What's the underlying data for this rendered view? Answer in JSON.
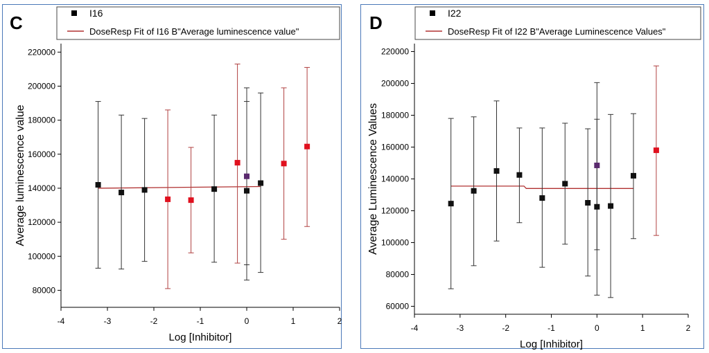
{
  "chart_data": [
    {
      "type": "scatter",
      "panel_letter": "C",
      "xlabel": "Log [Inhibitor]",
      "ylabel": "Average luminescence value",
      "xlim": [
        -4,
        2
      ],
      "ylim": [
        70000,
        225000
      ],
      "xticks": [
        -4,
        -3,
        -2,
        -1,
        0,
        1,
        2
      ],
      "yticks": [
        80000,
        100000,
        120000,
        140000,
        160000,
        180000,
        200000,
        220000
      ],
      "grid": false,
      "legend_position": "top",
      "legend": [
        {
          "label": "I16",
          "kind": "marker",
          "color": "#000000"
        },
        {
          "label": "DoseResp Fit of I16 B\"Average luminescence value\"",
          "kind": "line",
          "color": "#b03030"
        }
      ],
      "colors": {
        "black": "#111111",
        "red": "#e0101e",
        "purple": "#5a2a6e",
        "fit": "#b03030",
        "errbar_red": "#b04040",
        "errbar_black": "#333333"
      },
      "fit_line": {
        "x": [
          -3.2,
          0.3
        ],
        "y": [
          140000,
          141000
        ]
      },
      "points": [
        {
          "x": -3.2,
          "y": 142000,
          "lo": 93000,
          "hi": 191000,
          "color": "black"
        },
        {
          "x": -2.7,
          "y": 137500,
          "lo": 92500,
          "hi": 183000,
          "color": "black"
        },
        {
          "x": -2.2,
          "y": 139000,
          "lo": 97000,
          "hi": 181000,
          "color": "black"
        },
        {
          "x": -1.7,
          "y": 133500,
          "lo": 81000,
          "hi": 186000,
          "color": "red"
        },
        {
          "x": -1.2,
          "y": 133000,
          "lo": 102000,
          "hi": 164000,
          "color": "red"
        },
        {
          "x": -0.7,
          "y": 139500,
          "lo": 96500,
          "hi": 183000,
          "color": "black"
        },
        {
          "x": -0.2,
          "y": 155000,
          "lo": 96000,
          "hi": 213000,
          "color": "red"
        },
        {
          "x": 0.0,
          "y": 147000,
          "lo": 95000,
          "hi": 199000,
          "color": "purple"
        },
        {
          "x": 0.0,
          "y": 138500,
          "lo": 86000,
          "hi": 191000,
          "color": "black"
        },
        {
          "x": 0.3,
          "y": 143000,
          "lo": 90500,
          "hi": 196000,
          "color": "black"
        },
        {
          "x": 0.8,
          "y": 154500,
          "lo": 110000,
          "hi": 199000,
          "color": "red"
        },
        {
          "x": 1.3,
          "y": 164500,
          "lo": 117500,
          "hi": 211000,
          "color": "red"
        }
      ]
    },
    {
      "type": "scatter",
      "panel_letter": "D",
      "xlabel": "Log [Inhibitor]",
      "ylabel": "Average Luminescence Values",
      "xlim": [
        -4,
        2
      ],
      "ylim": [
        55000,
        225000
      ],
      "xticks": [
        -4,
        -3,
        -2,
        -1,
        0,
        1,
        2
      ],
      "yticks": [
        60000,
        80000,
        100000,
        120000,
        140000,
        160000,
        180000,
        200000,
        220000
      ],
      "grid": false,
      "legend_position": "top",
      "legend": [
        {
          "label": "I22",
          "kind": "marker",
          "color": "#000000"
        },
        {
          "label": "DoseResp Fit of I22 B\"Average Luminescence Values\"",
          "kind": "line",
          "color": "#b03030"
        }
      ],
      "colors": {
        "black": "#111111",
        "red": "#e0101e",
        "purple": "#5a2a6e",
        "fit": "#b03030",
        "errbar_red": "#b04040",
        "errbar_black": "#333333"
      },
      "fit_line": {
        "x": [
          -3.2,
          -1.6,
          -1.55,
          0.8
        ],
        "y": [
          135500,
          135500,
          134000,
          134000
        ]
      },
      "points": [
        {
          "x": -3.2,
          "y": 124500,
          "lo": 71000,
          "hi": 178000,
          "color": "black"
        },
        {
          "x": -2.7,
          "y": 132500,
          "lo": 85500,
          "hi": 179000,
          "color": "black"
        },
        {
          "x": -2.2,
          "y": 145000,
          "lo": 101000,
          "hi": 189000,
          "color": "black"
        },
        {
          "x": -1.7,
          "y": 142500,
          "lo": 112500,
          "hi": 172000,
          "color": "black"
        },
        {
          "x": -1.2,
          "y": 128000,
          "lo": 84500,
          "hi": 172000,
          "color": "black"
        },
        {
          "x": -0.7,
          "y": 137000,
          "lo": 99000,
          "hi": 175000,
          "color": "black"
        },
        {
          "x": -0.2,
          "y": 125000,
          "lo": 79000,
          "hi": 171500,
          "color": "black"
        },
        {
          "x": 0.0,
          "y": 148500,
          "lo": 95500,
          "hi": 200500,
          "color": "purple"
        },
        {
          "x": 0.0,
          "y": 122500,
          "lo": 67000,
          "hi": 177500,
          "color": "black"
        },
        {
          "x": 0.3,
          "y": 123000,
          "lo": 65500,
          "hi": 180500,
          "color": "black"
        },
        {
          "x": 0.8,
          "y": 142000,
          "lo": 102500,
          "hi": 181000,
          "color": "black"
        },
        {
          "x": 1.3,
          "y": 158000,
          "lo": 104500,
          "hi": 211000,
          "color": "red"
        }
      ]
    }
  ]
}
